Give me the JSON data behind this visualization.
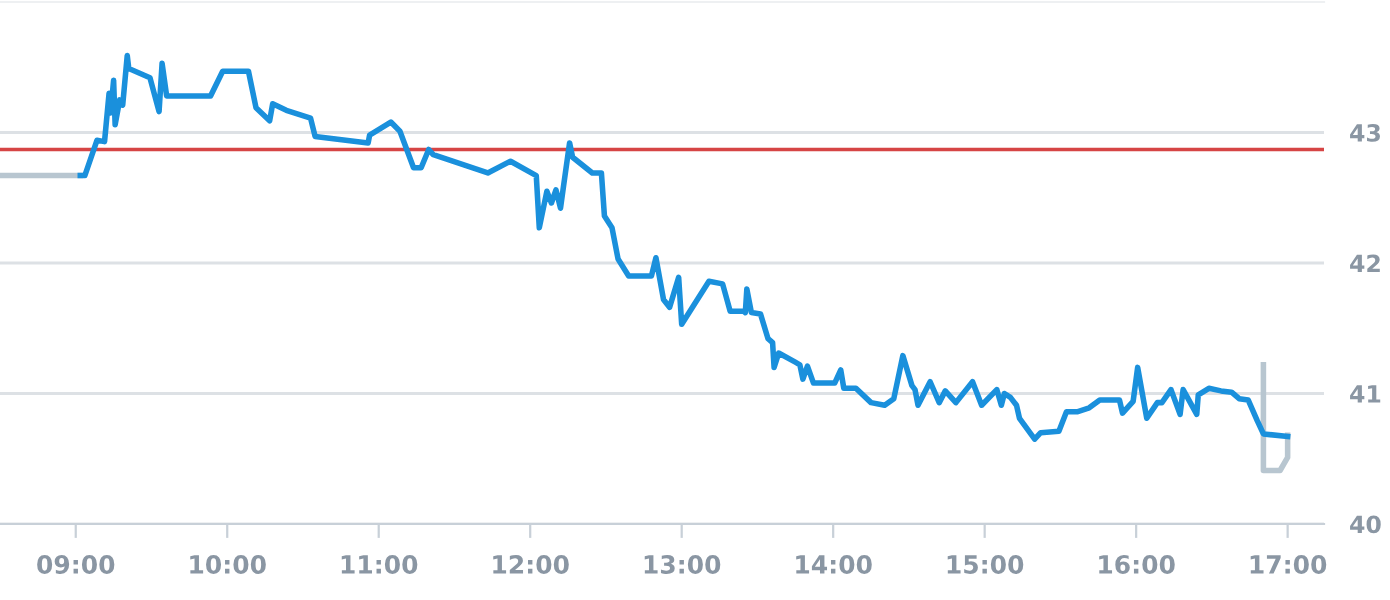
{
  "chart_data": {
    "type": "line",
    "xlim": [
      8.5,
      17.24
    ],
    "ylim": [
      40,
      44
    ],
    "xticks": [
      {
        "value": 9,
        "label": "09:00"
      },
      {
        "value": 10,
        "label": "10:00"
      },
      {
        "value": 11,
        "label": "11:00"
      },
      {
        "value": 12,
        "label": "12:00"
      },
      {
        "value": 13,
        "label": "13:00"
      },
      {
        "value": 14,
        "label": "14:00"
      },
      {
        "value": 15,
        "label": "15:00"
      },
      {
        "value": 16,
        "label": "16:00"
      },
      {
        "value": 17,
        "label": "17:00"
      }
    ],
    "yticks": [
      40,
      41,
      42,
      43
    ],
    "grid": "y",
    "marker": "none",
    "line_style": "solid",
    "ref_lines": [
      {
        "axis": "y",
        "value": 42.87,
        "color": "#d64545"
      }
    ],
    "series": [
      {
        "color": "#b8c6d0",
        "x": [
          8.5,
          9.03,
          13,
          16.84,
          16.84,
          16.95,
          17.0,
          17.0
        ],
        "values": [
          42.67,
          42.67,
          null,
          41.22,
          40.41,
          40.41,
          40.51,
          40.68
        ]
      },
      {
        "color": "#1a90dc",
        "x": [
          9.03,
          9.06,
          9.14,
          9.19,
          9.22,
          9.23,
          9.25,
          9.26,
          9.29,
          9.31,
          9.34,
          9.35,
          9.49,
          9.55,
          9.57,
          9.6,
          9.89,
          9.97,
          10.14,
          10.19,
          10.28,
          10.3,
          10.39,
          10.55,
          10.58,
          10.93,
          10.94,
          11.08,
          11.14,
          11.23,
          11.28,
          11.33,
          11.36,
          11.72,
          11.87,
          12.04,
          12.06,
          12.11,
          12.14,
          12.17,
          12.2,
          12.22,
          12.26,
          12.28,
          12.41,
          12.47,
          12.49,
          12.54,
          12.58,
          12.65,
          12.8,
          12.83,
          12.88,
          12.92,
          12.98,
          13.0,
          13.18,
          13.27,
          13.32,
          13.41,
          13.42,
          13.43,
          13.46,
          13.52,
          13.57,
          13.6,
          13.61,
          13.64,
          13.75,
          13.78,
          13.8,
          13.83,
          13.87,
          14.01,
          14.05,
          14.07,
          14.15,
          14.25,
          14.34,
          14.4,
          14.46,
          14.52,
          14.54,
          14.56,
          14.64,
          14.7,
          14.74,
          14.81,
          14.92,
          14.98,
          15.08,
          15.11,
          15.13,
          15.17,
          15.21,
          15.23,
          15.33,
          15.37,
          15.49,
          15.54,
          15.61,
          15.69,
          15.76,
          15.89,
          15.91,
          15.98,
          16.01,
          16.07,
          16.14,
          16.17,
          16.23,
          16.29,
          16.31,
          16.4,
          16.41,
          16.48,
          16.56,
          16.63,
          16.68,
          16.74,
          16.8,
          16.84,
          17.0
        ],
        "values": [
          42.67,
          42.67,
          42.94,
          42.93,
          43.3,
          43.15,
          43.4,
          43.06,
          43.25,
          43.21,
          43.59,
          43.49,
          43.42,
          43.16,
          43.53,
          43.28,
          43.28,
          43.47,
          43.47,
          43.19,
          43.09,
          43.22,
          43.17,
          43.11,
          42.97,
          42.92,
          42.98,
          43.08,
          43.01,
          42.73,
          42.73,
          42.87,
          42.83,
          42.69,
          42.78,
          42.67,
          42.27,
          42.55,
          42.46,
          42.56,
          42.42,
          42.59,
          42.92,
          42.81,
          42.69,
          42.69,
          42.36,
          42.27,
          42.03,
          41.9,
          41.9,
          42.04,
          41.72,
          41.66,
          41.89,
          41.53,
          41.86,
          41.84,
          41.63,
          41.63,
          41.62,
          41.8,
          41.62,
          41.61,
          41.42,
          41.39,
          41.2,
          41.31,
          41.24,
          41.22,
          41.11,
          41.21,
          41.08,
          41.08,
          41.18,
          41.04,
          41.04,
          40.93,
          40.91,
          40.96,
          41.29,
          41.06,
          41.03,
          40.91,
          41.09,
          40.93,
          41.02,
          40.93,
          41.09,
          40.91,
          41.03,
          40.91,
          41.0,
          40.97,
          40.91,
          40.81,
          40.65,
          40.7,
          40.71,
          40.86,
          40.86,
          40.89,
          40.95,
          40.95,
          40.85,
          40.94,
          41.2,
          40.81,
          40.93,
          40.93,
          41.03,
          40.84,
          41.03,
          40.84,
          40.99,
          41.04,
          41.02,
          41.01,
          40.96,
          40.95,
          40.79,
          40.69,
          40.67
        ]
      }
    ]
  }
}
